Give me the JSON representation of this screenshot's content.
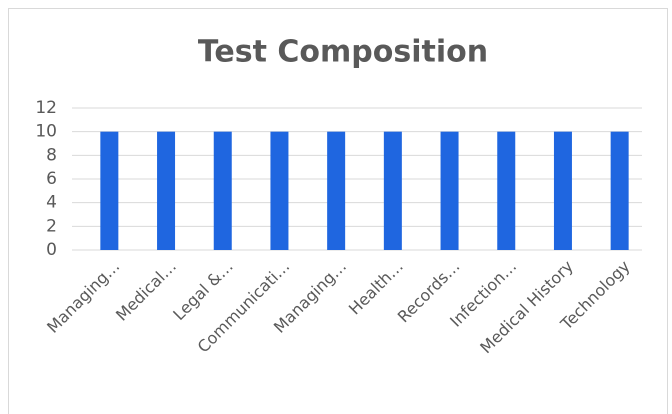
{
  "chart_data": {
    "type": "bar",
    "title": "Test Composition",
    "categories": [
      "Managing…",
      "Medical…",
      "Legal &…",
      "Communicati…",
      "Managing…",
      "Health…",
      "Records…",
      "Infection…",
      "Medical History",
      "Technology"
    ],
    "values": [
      10,
      10,
      10,
      10,
      10,
      10,
      10,
      10,
      10,
      10
    ],
    "color": "#1f66e0",
    "ylim": [
      0,
      12
    ],
    "yticks": [
      0,
      2,
      4,
      6,
      8,
      10,
      12
    ],
    "grid": true
  }
}
